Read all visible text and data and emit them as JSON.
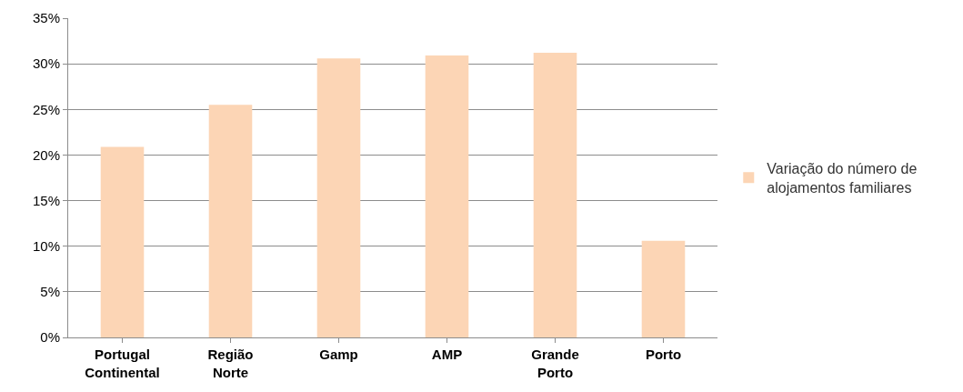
{
  "chart_data": {
    "type": "bar",
    "categories": [
      "Portugal Continental",
      "Região Norte",
      "Gamp",
      "AMP",
      "Grande Porto",
      "Porto"
    ],
    "series": [
      {
        "name": "Variação do número de alojamentos familiares",
        "color": "#fcd5b5",
        "values": [
          20.9,
          25.5,
          30.6,
          30.9,
          31.2,
          10.6
        ]
      }
    ],
    "ylim": [
      0,
      35
    ],
    "yticks": [
      {
        "value": 0,
        "label": "0%"
      },
      {
        "value": 5,
        "label": "5%"
      },
      {
        "value": 10,
        "label": "10%"
      },
      {
        "value": 15,
        "label": "15%"
      },
      {
        "value": 20,
        "label": "20%"
      },
      {
        "value": 25,
        "label": "25%"
      },
      {
        "value": 30,
        "label": "30%"
      },
      {
        "value": 35,
        "label": "35%"
      }
    ],
    "grid": "y",
    "legend": "right"
  }
}
